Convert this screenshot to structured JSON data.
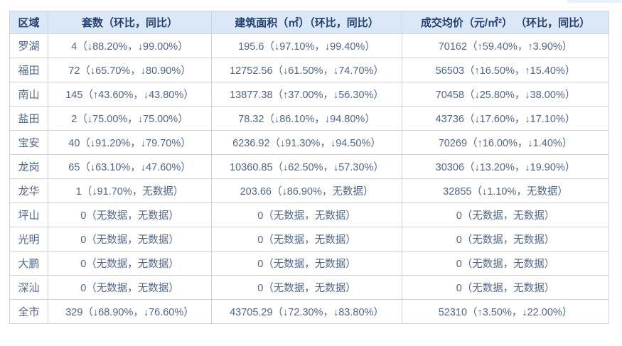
{
  "colors": {
    "header_bg": "#dae8f8",
    "header_text": "#25406f",
    "body_text": "#50678a",
    "border": "#d2d2d2",
    "clipped_element": "#e8f2fc"
  },
  "table": {
    "columns": {
      "district": "区域",
      "units": "套数（环比，同比）",
      "area": "建筑面积（㎡）（环比，同比）",
      "price": "成交均价（元/㎡²） （环比，同比）"
    },
    "rows": [
      {
        "district": "罗湖",
        "units": "4（↓88.20%，↓99.00%）",
        "area": "195.6（↓97.10%，↓99.40%）",
        "price": "70162（↑59.40%，↑3.90%）"
      },
      {
        "district": "福田",
        "units": "72（↓65.70%，↓80.90%）",
        "area": "12752.56（↓61.50%，↓74.70%）",
        "price": "56503（↑16.50%，↑15.40%）"
      },
      {
        "district": "南山",
        "units": "145（↑43.60%，↓43.80%）",
        "area": "13877.38（↑37.00%，↓56.30%）",
        "price": "70458（↓25.80%，↓38.00%）"
      },
      {
        "district": "盐田",
        "units": "2（↓75.00%，↓75.00%）",
        "area": "78.32（↓86.10%，↓94.80%）",
        "price": "43736（↓17.60%，↓17.10%）"
      },
      {
        "district": "宝安",
        "units": "40（↓91.20%，↓79.70%）",
        "area": "6236.92（↓91.30%，↓94.50%）",
        "price": "70269（↑16.00%，↓1.40%）"
      },
      {
        "district": "龙岗",
        "units": "65（↓63.10%，↓47.60%）",
        "area": "10360.85（↓62.50%，↓57.30%）",
        "price": "30306（↓13.20%，↓19.90%）"
      },
      {
        "district": "龙华",
        "units": "1（↓91.70%，无数据）",
        "area": "203.66（↓86.90%，无数据）",
        "price": "32855（↓1.10%，无数据）"
      },
      {
        "district": "坪山",
        "units": "0（无数据，无数据）",
        "area": "0（无数据，无数据）",
        "price": "0（无数据，无数据）"
      },
      {
        "district": "光明",
        "units": "0（无数据，无数据）",
        "area": "0（无数据，无数据）",
        "price": "0（无数据，无数据）"
      },
      {
        "district": "大鹏",
        "units": "0（无数据，无数据）",
        "area": "0（无数据，无数据）",
        "price": "0（无数据，无数据）"
      },
      {
        "district": "深汕",
        "units": "0（无数据，无数据）",
        "area": "0（无数据，无数据）",
        "price": "0（无数据，无数据）"
      },
      {
        "district": "全市",
        "units": "329（↓68.90%，↓76.60%）",
        "area": "43705.29（↓72.30%，↓83.80%）",
        "price": "52310（↑3.50%，↓22.00%）"
      }
    ]
  }
}
